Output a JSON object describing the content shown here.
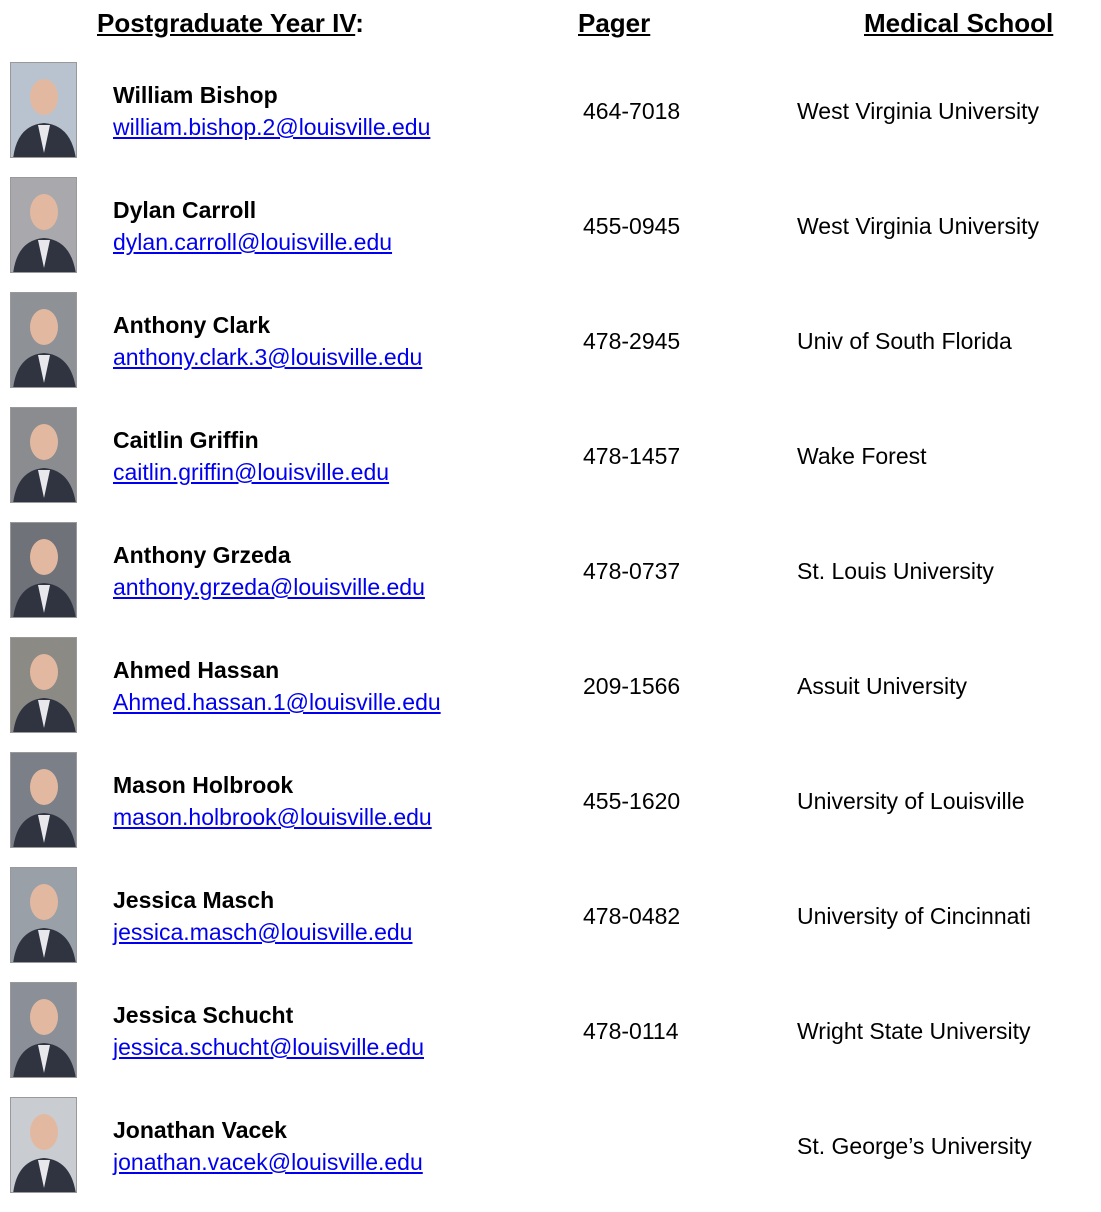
{
  "header": {
    "columns": [
      {
        "text": "Postgraduate Year IV",
        "suffix": ":"
      },
      {
        "text": "Pager"
      },
      {
        "text": "Medical School"
      }
    ]
  },
  "residents": [
    {
      "name": "William Bishop",
      "email": "william.bishop.2@louisville.edu",
      "pager": "464-7018",
      "school": "West Virginia University"
    },
    {
      "name": "Dylan Carroll",
      "email": "dylan.carroll@louisville.edu",
      "pager": "455-0945",
      "school": "West Virginia University"
    },
    {
      "name": "Anthony Clark",
      "email": "anthony.clark.3@louisville.edu",
      "pager": "478-2945",
      "school": "Univ of South Florida"
    },
    {
      "name": "Caitlin Griffin",
      "email": "caitlin.griffin@louisville.edu",
      "pager": "478-1457",
      "school": "Wake Forest"
    },
    {
      "name": "Anthony Grzeda",
      "email": "anthony.grzeda@louisville.edu",
      "pager": "478-0737",
      "school": "St. Louis University"
    },
    {
      "name": "Ahmed Hassan",
      "email": "Ahmed.hassan.1@louisville.edu",
      "pager": "209-1566",
      "school": "Assuit University"
    },
    {
      "name": "Mason Holbrook",
      "email": "mason.holbrook@louisville.edu",
      "pager": "455-1620",
      "school": "University of Louisville"
    },
    {
      "name": "Jessica Masch",
      "email": "jessica.masch@louisville.edu",
      "pager": "478-0482",
      "school": "University of Cincinnati"
    },
    {
      "name": "Jessica Schucht",
      "email": "jessica.schucht@louisville.edu",
      "pager": "478-0114",
      "school": "Wright State University"
    },
    {
      "name": "Jonathan Vacek",
      "email": "jonathan.vacek@louisville.edu",
      "school": "St. George’s University"
    }
  ]
}
